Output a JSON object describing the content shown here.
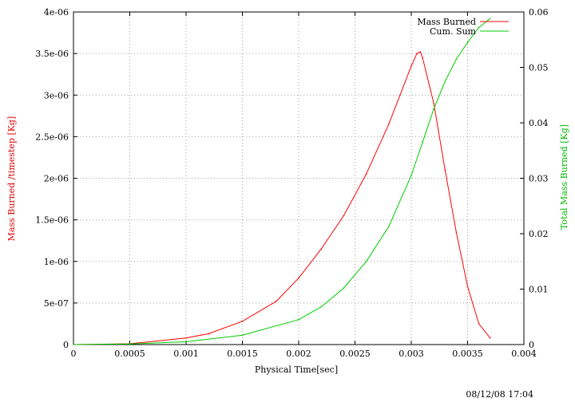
{
  "chart_data": {
    "type": "line",
    "title": "",
    "xlabel": "Physical Time[sec]",
    "ylabel": "Mass Burned /timestep [Kg]",
    "y2label": "Total Mass Burned [Kg]",
    "xlim": [
      0,
      0.004
    ],
    "ylim": [
      0,
      4e-06
    ],
    "y2lim": [
      0,
      0.06
    ],
    "grid": true,
    "legend": "top-right",
    "x_ticks": [
      "0",
      "0.0005",
      "0.001",
      "0.0015",
      "0.002",
      "0.0025",
      "0.003",
      "0.0035",
      "0.004"
    ],
    "y_ticks": [
      "0",
      "5e-07",
      "1e-06",
      "1.5e-06",
      "2e-06",
      "2.5e-06",
      "3e-06",
      "3.5e-06",
      "4e-06"
    ],
    "y2_ticks": [
      "0",
      "0.01",
      "0.02",
      "0.03",
      "0.04",
      "0.05",
      "0.06"
    ],
    "series": [
      {
        "name": "Mass Burned",
        "axis": "left",
        "color": "#ff0000",
        "x": [
          0,
          0.0005,
          0.001,
          0.0012,
          0.0015,
          0.0018,
          0.002,
          0.0022,
          0.0024,
          0.0026,
          0.0028,
          0.0029,
          0.003,
          0.00305,
          0.00308,
          0.0031,
          0.0032,
          0.0033,
          0.0034,
          0.0035,
          0.0036,
          0.0037
        ],
        "y": [
          0,
          1e-08,
          8e-08,
          1.3e-07,
          2.8e-07,
          5.2e-07,
          8e-07,
          1.15e-06,
          1.55e-06,
          2.05e-06,
          2.65e-06,
          3e-06,
          3.35e-06,
          3.5e-06,
          3.52e-06,
          3.45e-06,
          2.9e-06,
          2.1e-06,
          1.35e-06,
          7e-07,
          2.5e-07,
          8e-08
        ]
      },
      {
        "name": "Cum. Sum",
        "axis": "right",
        "color": "#00cc00",
        "x": [
          0,
          0.0005,
          0.001,
          0.0015,
          0.002,
          0.0022,
          0.0024,
          0.0026,
          0.0028,
          0.003,
          0.0031,
          0.0032,
          0.0033,
          0.0034,
          0.0035,
          0.0036,
          0.0037
        ],
        "y": [
          0,
          0.0001,
          0.0005,
          0.0017,
          0.0045,
          0.0068,
          0.0102,
          0.015,
          0.0213,
          0.0305,
          0.0365,
          0.0425,
          0.0475,
          0.0515,
          0.0545,
          0.0572,
          0.0588
        ]
      }
    ]
  },
  "timestamp": "08/12/08 17:04"
}
